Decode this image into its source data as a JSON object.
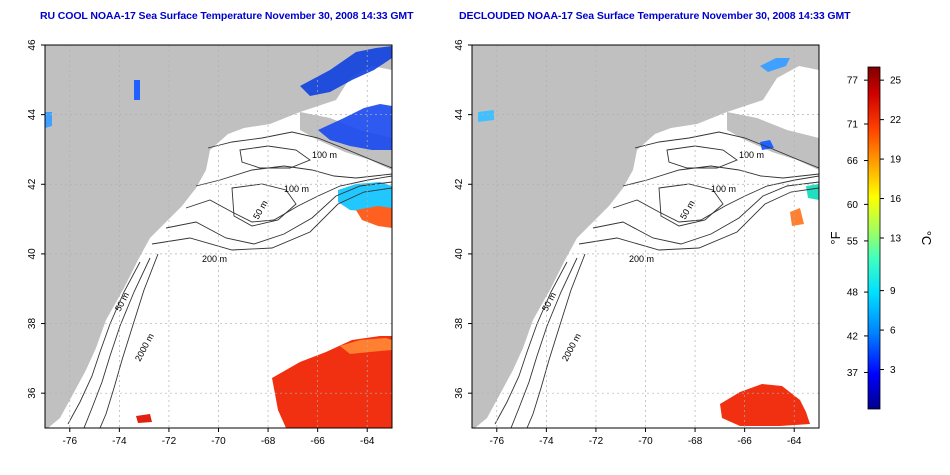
{
  "panels": [
    {
      "title": "RU COOL NOAA-17 Sea Surface Temperature November 30, 2008 14:33 GMT",
      "contour_labels": [
        "100 m",
        "100 m",
        "50 m",
        "200 m",
        "50 m",
        "2000 m"
      ]
    },
    {
      "title": "DECLOUDED NOAA-17 Sea Surface Temperature November 30, 2008 14:33 GMT",
      "contour_labels": [
        "100 m",
        "100 m",
        "50 m",
        "200 m",
        "50 m",
        "2000 m"
      ]
    }
  ],
  "axes": {
    "lon_ticks": [
      "-76",
      "-74",
      "-72",
      "-70",
      "-68",
      "-66",
      "-64"
    ],
    "lat_ticks": [
      "46",
      "44",
      "42",
      "40",
      "38",
      "36"
    ],
    "lon_range": [
      -77.0,
      -63.0
    ],
    "lat_range": [
      35.0,
      46.0
    ]
  },
  "colorbar": {
    "fahrenheit_label": "°F",
    "celsius_label": "°C",
    "fahrenheit_ticks": [
      "77",
      "71",
      "66",
      "60",
      "55",
      "48",
      "42",
      "37"
    ],
    "celsius_ticks": [
      "25",
      "22",
      "19",
      "16",
      "13",
      "9",
      "6",
      "3"
    ],
    "fahrenheit_values": [
      77,
      71,
      66,
      60,
      55,
      48,
      42,
      37
    ],
    "celsius_values": [
      25,
      22,
      19,
      16,
      13,
      9,
      6,
      3
    ],
    "range_celsius": [
      0,
      26
    ],
    "colors": [
      "#00008b",
      "#0000ff",
      "#0080ff",
      "#00e0ff",
      "#40ffc0",
      "#a0ff60",
      "#ffff00",
      "#ffa000",
      "#ff4000",
      "#d00000",
      "#800000"
    ]
  },
  "colors": {
    "land": "#c0c0c0",
    "ocean": "#ffffff",
    "contour": "#333333",
    "grid": "#b0b0b0",
    "title": "#0000cc"
  }
}
